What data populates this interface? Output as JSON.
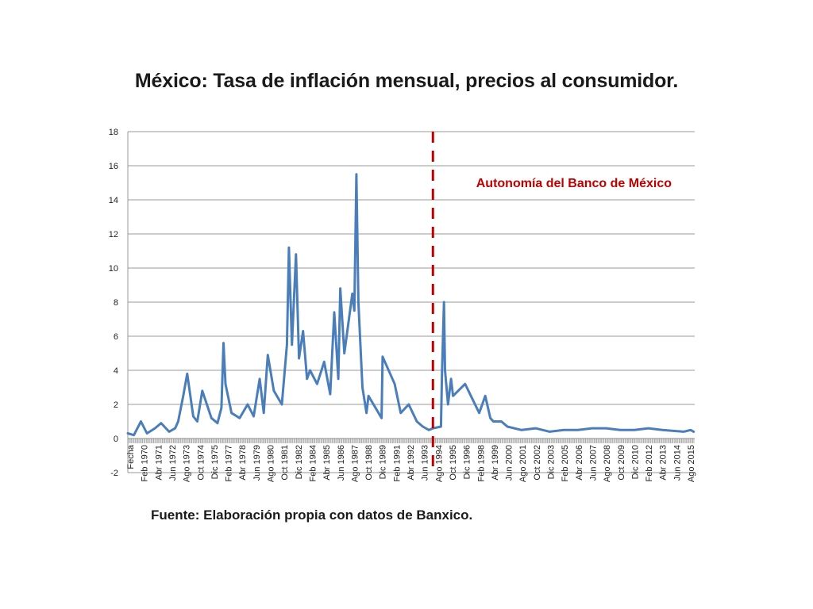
{
  "chart_data": {
    "type": "line",
    "title": "México: Tasa de inflación mensual, precios al consumidor.",
    "source": "Fuente: Elaboración propia con datos  de Banxico.",
    "annotation": "Autonomía del Banco de México",
    "annotation_line_date": "Abr 1994",
    "ylim": [
      -2,
      18
    ],
    "yticks": [
      "18",
      "16",
      "14",
      "12",
      "10",
      "8",
      "6",
      "4",
      "2",
      "0",
      "-2"
    ],
    "ytick_values": [
      18,
      16,
      14,
      12,
      10,
      8,
      6,
      4,
      2,
      0,
      -2
    ],
    "xtick_labels": [
      "Fecha",
      "Feb 1970",
      "Abr 1971",
      "Jun 1972",
      "Ago 1973",
      "Oct 1974",
      "Dic 1975",
      "Feb 1977",
      "Abr 1978",
      "Jun 1979",
      "Ago 1980",
      "Oct 1981",
      "Dic 1982",
      "Feb 1984",
      "Abr 1985",
      "Jun 1986",
      "Ago 1987",
      "Oct 1988",
      "Dic 1989",
      "Feb 1991",
      "Abr 1992",
      "Jun 1993",
      "Ago 1994",
      "Oct 1995",
      "Dic 1996",
      "Feb 1998",
      "Abr 1999",
      "Jun 2000",
      "Ago 2001",
      "Oct 2002",
      "Dic 2003",
      "Feb 2005",
      "Abr 2006",
      "Jun 2007",
      "Ago 2008",
      "Oct 2009",
      "Dic 2010",
      "Feb 2012",
      "Abr 2013",
      "Jun 2014",
      "Ago 2015"
    ],
    "grid": true,
    "legend": "none",
    "colors": {
      "series": "#4a7ebb",
      "annotation": "#c00000",
      "grid": "#999999"
    },
    "series": [
      {
        "x": [
          "Ene 1969",
          "Jul 1969",
          "Feb 1970",
          "Ago 1970",
          "Abr 1971",
          "Oct 1971",
          "Jun 1972",
          "Dic 1972",
          "Mar 1973",
          "Ago 1973",
          "Dic 1973",
          "Jun 1974",
          "Oct 1974",
          "Mar 1975",
          "Dic 1975",
          "Jun 1976",
          "Oct 1976",
          "Dic 1976",
          "Feb 1977",
          "Ago 1977",
          "Abr 1978",
          "Dic 1978",
          "Jun 1979",
          "Dic 1979",
          "Abr 1980",
          "Ago 1980",
          "Feb 1981",
          "Oct 1981",
          "Mar 1982",
          "May 1982",
          "Ago 1982",
          "Dic 1982",
          "Mar 1983",
          "Jul 1983",
          "Nov 1983",
          "Feb 1984",
          "Sep 1984",
          "Abr 1985",
          "Oct 1985",
          "Feb 1986",
          "Jun 1986",
          "Ago 1986",
          "Dic 1986",
          "Ago 1987",
          "Oct 1987",
          "Dic 1987",
          "Feb 1988",
          "Jun 1988",
          "Oct 1988",
          "Dic 1988",
          "Ene 1990",
          "Feb 1990",
          "Feb 1991",
          "Ago 1991",
          "Abr 1992",
          "Dic 1992",
          "Jun 1993",
          "Dic 1993",
          "Abr 1994",
          "Dic 1994",
          "Ene 1995",
          "Mar 1995",
          "Abr 1995",
          "Jul 1995",
          "Oct 1995",
          "Dic 1995",
          "Dic 1996",
          "Feb 1998",
          "Ago 1998",
          "Ene 1999",
          "Abr 1999",
          "Dic 1999",
          "Jun 2000",
          "Ago 2001",
          "Oct 2002",
          "Dic 2003",
          "Feb 2005",
          "Abr 2006",
          "Jun 2007",
          "Ago 2008",
          "Oct 2009",
          "Dic 2010",
          "Feb 2012",
          "Abr 2013",
          "Ene 2015",
          "Ago 2015",
          "Nov 2015"
        ],
        "values": [
          0.3,
          0.2,
          1.0,
          0.3,
          0.6,
          0.9,
          0.4,
          0.6,
          1.0,
          2.5,
          3.8,
          1.3,
          1.0,
          2.8,
          1.2,
          0.9,
          1.8,
          5.6,
          3.2,
          1.5,
          1.2,
          2.0,
          1.3,
          3.5,
          1.5,
          4.9,
          2.8,
          2.0,
          5.5,
          11.2,
          5.5,
          10.8,
          4.7,
          6.3,
          3.5,
          4.0,
          3.2,
          4.5,
          2.6,
          7.4,
          3.5,
          8.8,
          5.0,
          8.5,
          7.5,
          15.5,
          8.0,
          3.0,
          1.5,
          2.5,
          1.2,
          4.8,
          3.2,
          1.5,
          2.0,
          1.0,
          0.7,
          0.5,
          0.6,
          0.7,
          3.8,
          8.0,
          4.0,
          2.0,
          3.5,
          2.5,
          3.2,
          1.5,
          2.5,
          1.2,
          1.0,
          1.0,
          0.7,
          0.5,
          0.6,
          0.4,
          0.5,
          0.5,
          0.6,
          0.6,
          0.5,
          0.5,
          0.6,
          0.5,
          0.4,
          0.5,
          0.4
        ]
      }
    ]
  }
}
